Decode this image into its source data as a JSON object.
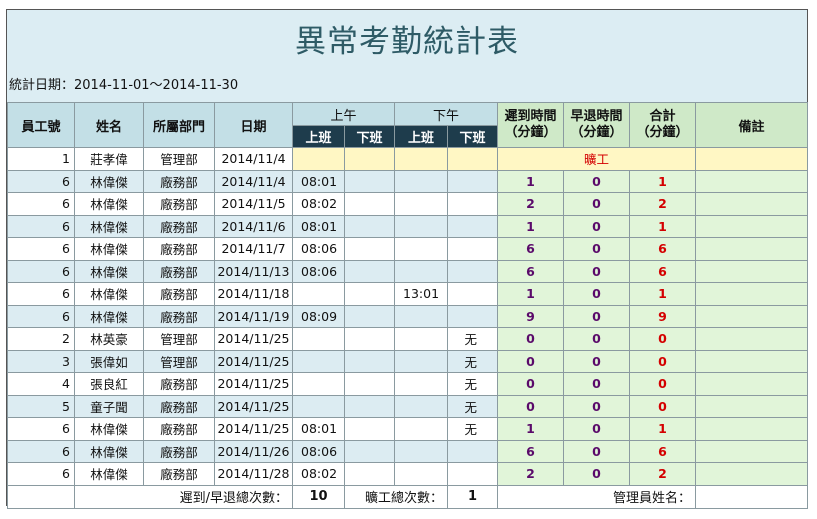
{
  "title": "異常考勤統計表",
  "date_range": "統計日期：2014-11-01～2014-11-30",
  "headers": {
    "emp_no": "員工號",
    "name": "姓名",
    "dept": "所屬部門",
    "date": "日期",
    "am": "上午",
    "pm": "下午",
    "clock_in": "上班",
    "clock_out": "下班",
    "late": "遲到時間\n（分鐘）",
    "early": "早退時間\n（分鐘）",
    "total": "合計\n（分鐘）",
    "notes": "備註"
  },
  "rows": [
    {
      "no": "1",
      "name": "莊孝偉",
      "dept": "管理部",
      "date": "2014/11/4",
      "am_in": "",
      "am_out": "",
      "pm_in": "",
      "pm_out": "",
      "late": "",
      "early": "",
      "total": "",
      "absent": "曠工"
    },
    {
      "no": "6",
      "name": "林偉傑",
      "dept": "廠務部",
      "date": "2014/11/4",
      "am_in": "08:01",
      "am_out": "",
      "pm_in": "",
      "pm_out": "",
      "late": "1",
      "early": "0",
      "total": "1",
      "absent": ""
    },
    {
      "no": "6",
      "name": "林偉傑",
      "dept": "廠務部",
      "date": "2014/11/5",
      "am_in": "08:02",
      "am_out": "",
      "pm_in": "",
      "pm_out": "",
      "late": "2",
      "early": "0",
      "total": "2",
      "absent": ""
    },
    {
      "no": "6",
      "name": "林偉傑",
      "dept": "廠務部",
      "date": "2014/11/6",
      "am_in": "08:01",
      "am_out": "",
      "pm_in": "",
      "pm_out": "",
      "late": "1",
      "early": "0",
      "total": "1",
      "absent": ""
    },
    {
      "no": "6",
      "name": "林偉傑",
      "dept": "廠務部",
      "date": "2014/11/7",
      "am_in": "08:06",
      "am_out": "",
      "pm_in": "",
      "pm_out": "",
      "late": "6",
      "early": "0",
      "total": "6",
      "absent": ""
    },
    {
      "no": "6",
      "name": "林偉傑",
      "dept": "廠務部",
      "date": "2014/11/13",
      "am_in": "08:06",
      "am_out": "",
      "pm_in": "",
      "pm_out": "",
      "late": "6",
      "early": "0",
      "total": "6",
      "absent": ""
    },
    {
      "no": "6",
      "name": "林偉傑",
      "dept": "廠務部",
      "date": "2014/11/18",
      "am_in": "",
      "am_out": "",
      "pm_in": "13:01",
      "pm_out": "",
      "late": "1",
      "early": "0",
      "total": "1",
      "absent": ""
    },
    {
      "no": "6",
      "name": "林偉傑",
      "dept": "廠務部",
      "date": "2014/11/19",
      "am_in": "08:09",
      "am_out": "",
      "pm_in": "",
      "pm_out": "",
      "late": "9",
      "early": "0",
      "total": "9",
      "absent": ""
    },
    {
      "no": "2",
      "name": "林英豪",
      "dept": "管理部",
      "date": "2014/11/25",
      "am_in": "",
      "am_out": "",
      "pm_in": "",
      "pm_out": "无",
      "late": "0",
      "early": "0",
      "total": "0",
      "absent": ""
    },
    {
      "no": "3",
      "name": "張偉如",
      "dept": "管理部",
      "date": "2014/11/25",
      "am_in": "",
      "am_out": "",
      "pm_in": "",
      "pm_out": "无",
      "late": "0",
      "early": "0",
      "total": "0",
      "absent": ""
    },
    {
      "no": "4",
      "name": "張良紅",
      "dept": "廠務部",
      "date": "2014/11/25",
      "am_in": "",
      "am_out": "",
      "pm_in": "",
      "pm_out": "无",
      "late": "0",
      "early": "0",
      "total": "0",
      "absent": ""
    },
    {
      "no": "5",
      "name": "童子聞",
      "dept": "廠務部",
      "date": "2014/11/25",
      "am_in": "",
      "am_out": "",
      "pm_in": "",
      "pm_out": "无",
      "late": "0",
      "early": "0",
      "total": "0",
      "absent": ""
    },
    {
      "no": "6",
      "name": "林偉傑",
      "dept": "廠務部",
      "date": "2014/11/25",
      "am_in": "08:01",
      "am_out": "",
      "pm_in": "",
      "pm_out": "无",
      "late": "1",
      "early": "0",
      "total": "1",
      "absent": ""
    },
    {
      "no": "6",
      "name": "林偉傑",
      "dept": "廠務部",
      "date": "2014/11/26",
      "am_in": "08:06",
      "am_out": "",
      "pm_in": "",
      "pm_out": "",
      "late": "6",
      "early": "0",
      "total": "6",
      "absent": ""
    },
    {
      "no": "6",
      "name": "林偉傑",
      "dept": "廠務部",
      "date": "2014/11/28",
      "am_in": "08:02",
      "am_out": "",
      "pm_in": "",
      "pm_out": "",
      "late": "2",
      "early": "0",
      "total": "2",
      "absent": ""
    }
  ],
  "footer": {
    "late_early_label": "遲到/早退總次數：",
    "late_early_count": "10",
    "absent_label": "曠工總次數：",
    "absent_count": "1",
    "manager_label": "管理員姓名："
  }
}
